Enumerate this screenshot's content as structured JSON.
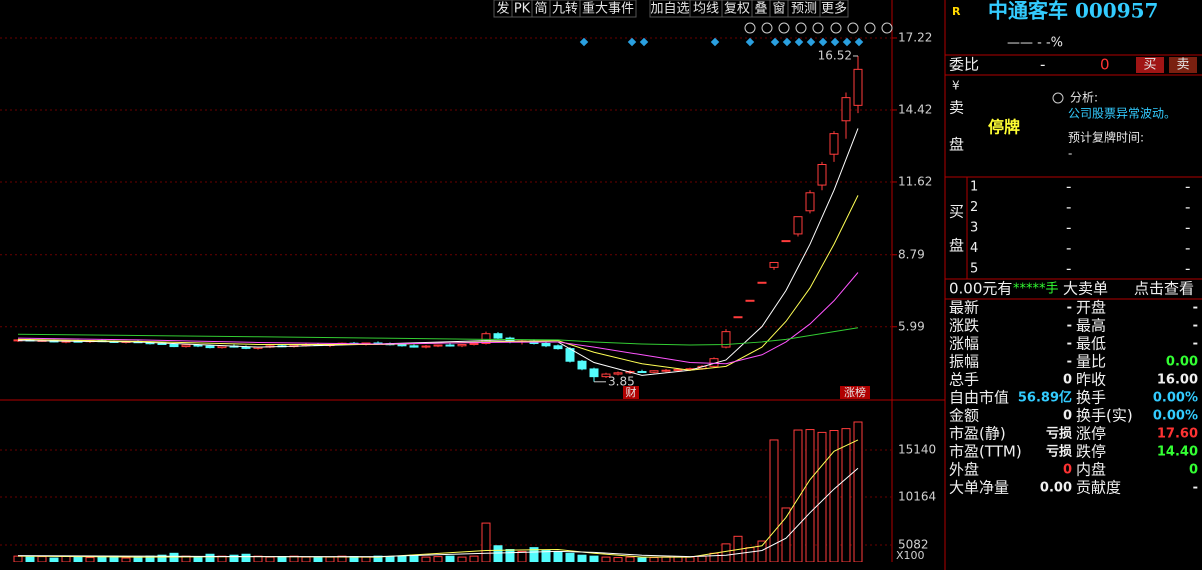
{
  "toolbar": [
    "发",
    "PK",
    "简",
    "九转",
    "重大事件",
    "加自选",
    "均线",
    "复权",
    "叠",
    "窗",
    "预测",
    "更多"
  ],
  "chart": {
    "ylim": [
      3.22,
      17.53
    ],
    "yticks": [
      17.22,
      14.42,
      11.62,
      8.79,
      5.99
    ],
    "candles": [
      [
        5.45,
        5.5,
        5.4,
        5.48
      ],
      [
        5.48,
        5.52,
        5.42,
        5.44
      ],
      [
        5.44,
        5.5,
        5.4,
        5.46
      ],
      [
        5.46,
        5.5,
        5.38,
        5.4
      ],
      [
        5.4,
        5.46,
        5.35,
        5.43
      ],
      [
        5.43,
        5.48,
        5.38,
        5.41
      ],
      [
        5.41,
        5.47,
        5.36,
        5.45
      ],
      [
        5.45,
        5.5,
        5.4,
        5.42
      ],
      [
        5.42,
        5.46,
        5.36,
        5.38
      ],
      [
        5.38,
        5.44,
        5.34,
        5.42
      ],
      [
        5.42,
        5.46,
        5.36,
        5.37
      ],
      [
        5.37,
        5.42,
        5.3,
        5.35
      ],
      [
        5.35,
        5.4,
        5.28,
        5.3
      ],
      [
        5.3,
        5.35,
        5.2,
        5.22
      ],
      [
        5.22,
        5.3,
        5.18,
        5.28
      ],
      [
        5.28,
        5.32,
        5.2,
        5.24
      ],
      [
        5.24,
        5.3,
        5.15,
        5.18
      ],
      [
        5.18,
        5.26,
        5.14,
        5.24
      ],
      [
        5.24,
        5.3,
        5.18,
        5.2
      ],
      [
        5.2,
        5.26,
        5.12,
        5.15
      ],
      [
        5.15,
        5.22,
        5.1,
        5.2
      ],
      [
        5.2,
        5.28,
        5.16,
        5.25
      ],
      [
        5.25,
        5.3,
        5.2,
        5.22
      ],
      [
        5.22,
        5.3,
        5.18,
        5.28
      ],
      [
        5.28,
        5.34,
        5.22,
        5.3
      ],
      [
        5.3,
        5.36,
        5.24,
        5.26
      ],
      [
        5.26,
        5.32,
        5.2,
        5.3
      ],
      [
        5.3,
        5.38,
        5.26,
        5.35
      ],
      [
        5.35,
        5.4,
        5.28,
        5.32
      ],
      [
        5.32,
        5.38,
        5.26,
        5.36
      ],
      [
        5.36,
        5.42,
        5.3,
        5.33
      ],
      [
        5.33,
        5.38,
        5.26,
        5.3
      ],
      [
        5.3,
        5.36,
        5.22,
        5.25
      ],
      [
        5.25,
        5.3,
        5.18,
        5.2
      ],
      [
        5.2,
        5.28,
        5.15,
        5.24
      ],
      [
        5.24,
        5.3,
        5.2,
        5.28
      ],
      [
        5.28,
        5.34,
        5.22,
        5.25
      ],
      [
        5.25,
        5.32,
        5.2,
        5.3
      ],
      [
        5.3,
        5.38,
        5.26,
        5.34
      ],
      [
        5.34,
        5.8,
        5.3,
        5.72
      ],
      [
        5.72,
        5.78,
        5.5,
        5.55
      ],
      [
        5.55,
        5.6,
        5.35,
        5.4
      ],
      [
        5.4,
        5.48,
        5.3,
        5.44
      ],
      [
        5.44,
        5.5,
        5.3,
        5.34
      ],
      [
        5.34,
        5.4,
        5.2,
        5.25
      ],
      [
        5.25,
        5.3,
        5.1,
        5.14
      ],
      [
        5.14,
        5.2,
        4.6,
        4.65
      ],
      [
        4.65,
        4.7,
        4.3,
        4.35
      ],
      [
        4.35,
        4.4,
        3.85,
        4.05
      ],
      [
        4.05,
        4.2,
        4.0,
        4.15
      ],
      [
        4.15,
        4.25,
        4.1,
        4.2
      ],
      [
        4.2,
        4.3,
        4.15,
        4.25
      ],
      [
        4.25,
        4.32,
        4.2,
        4.22
      ],
      [
        4.22,
        4.3,
        4.18,
        4.28
      ],
      [
        4.28,
        4.35,
        4.22,
        4.3
      ],
      [
        4.3,
        4.38,
        4.25,
        4.33
      ],
      [
        4.33,
        4.4,
        4.28,
        4.36
      ],
      [
        4.36,
        4.5,
        4.32,
        4.45
      ],
      [
        4.45,
        4.8,
        4.4,
        4.75
      ],
      [
        5.2,
        5.9,
        5.15,
        5.8
      ],
      [
        6.38,
        6.38,
        6.38,
        6.38
      ],
      [
        7.02,
        7.02,
        7.02,
        7.02
      ],
      [
        7.72,
        7.72,
        7.72,
        7.72
      ],
      [
        8.3,
        8.49,
        8.2,
        8.49
      ],
      [
        9.34,
        9.34,
        9.34,
        9.34
      ],
      [
        9.6,
        10.27,
        9.5,
        10.27
      ],
      [
        10.5,
        11.3,
        10.4,
        11.2
      ],
      [
        11.5,
        12.4,
        11.3,
        12.3
      ],
      [
        12.7,
        13.6,
        12.4,
        13.5
      ],
      [
        14.0,
        15.1,
        13.3,
        14.9
      ],
      [
        14.6,
        16.52,
        14.3,
        16.0
      ]
    ],
    "ma_x": [
      0,
      10,
      20,
      30,
      39,
      45,
      48,
      52,
      56,
      59,
      62,
      64,
      66,
      68,
      70
    ],
    "ma": [
      {
        "color": "#ffffff",
        "values": [
          5.45,
          5.4,
          5.2,
          5.32,
          5.45,
          5.4,
          4.6,
          4.1,
          4.3,
          4.7,
          6.0,
          7.4,
          9.2,
          11.3,
          13.7
        ]
      },
      {
        "color": "#ffff55",
        "values": [
          5.5,
          5.42,
          5.3,
          5.3,
          5.4,
          5.45,
          5.0,
          4.55,
          4.3,
          4.45,
          5.2,
          6.2,
          7.5,
          9.2,
          11.1
        ]
      },
      {
        "color": "#ff55ff",
        "values": [
          5.55,
          5.48,
          5.38,
          5.32,
          5.38,
          5.4,
          5.2,
          4.9,
          4.6,
          4.55,
          4.9,
          5.4,
          6.1,
          7.0,
          8.1
        ]
      },
      {
        "color": "#33cc33",
        "values": [
          5.7,
          5.65,
          5.6,
          5.55,
          5.5,
          5.48,
          5.4,
          5.32,
          5.28,
          5.3,
          5.4,
          5.5,
          5.65,
          5.8,
          5.95
        ]
      }
    ],
    "high": 16.52,
    "low": 3.85,
    "badge_cai": "财",
    "badge_zhangbang": "涨榜",
    "vol_ylim": [
      3280,
      19900
    ],
    "vol_ticks": [
      15140,
      10164,
      5082
    ],
    "vol_unit": "X100",
    "volumes": [
      3900,
      3800,
      3850,
      3700,
      3900,
      3800,
      3750,
      3850,
      3900,
      3700,
      3800,
      3900,
      4000,
      4200,
      3900,
      3800,
      4100,
      3900,
      4000,
      4100,
      3900,
      3800,
      3850,
      3900,
      3800,
      3750,
      3800,
      3900,
      3850,
      3800,
      3900,
      3850,
      3900,
      4000,
      3800,
      3850,
      3900,
      3800,
      3900,
      7400,
      5000,
      4600,
      4400,
      4800,
      4500,
      4300,
      4200,
      4000,
      3900,
      3800,
      3750,
      3800,
      3700,
      3750,
      3800,
      3850,
      3800,
      3900,
      4200,
      5200,
      6000,
      4800,
      5500,
      16200,
      9000,
      17250,
      17300,
      17000,
      17200,
      17400,
      18100
    ],
    "vol_ma": [
      {
        "color": "#ffff55",
        "values": [
          3900,
          3800,
          3850,
          3800,
          4500,
          4600,
          4200,
          3800,
          3800,
          4400,
          5000,
          8000,
          12000,
          15000,
          16200
        ]
      },
      {
        "color": "#ffffff",
        "values": [
          3950,
          3900,
          3850,
          3850,
          4200,
          4400,
          4300,
          4000,
          3850,
          4000,
          4500,
          5800,
          8500,
          11000,
          13200
        ]
      }
    ]
  },
  "quote": {
    "badge": "R",
    "title": "中通客车 000957",
    "change_line": "—— - -%",
    "weibi_label": "委比",
    "weibi_value": "-",
    "weibi_diff": "0",
    "buy_button": "买",
    "sell_button": "卖",
    "sell_side": [
      "¥",
      "卖",
      "盘"
    ],
    "halt": "停牌",
    "analysis_label": "分析:",
    "analysis_text": "公司股票异常波动。",
    "resume_label": "预计复牌时间:",
    "resume_value": "-",
    "buy_side": [
      "买",
      "盘"
    ],
    "levels": [
      [
        "1",
        "-",
        "-"
      ],
      [
        "2",
        "-",
        "-"
      ],
      [
        "3",
        "-",
        "-"
      ],
      [
        "4",
        "-",
        "-"
      ],
      [
        "5",
        "-",
        "-"
      ]
    ],
    "big_order": [
      "0.00元有",
      "*****手",
      "大卖单",
      "点击查看"
    ],
    "rows": [
      [
        "最新",
        "-",
        "开盘",
        "-"
      ],
      [
        "涨跌",
        "-",
        "最高",
        "-"
      ],
      [
        "涨幅",
        "-",
        "最低",
        "-"
      ],
      [
        "振幅",
        "-",
        "量比",
        "0.00"
      ],
      [
        "总手",
        "0",
        "昨收",
        "16.00"
      ],
      [
        "自由市值",
        "56.89亿",
        "换手",
        "0.00%"
      ],
      [
        "金额",
        "0",
        "换手(实)",
        "0.00%"
      ],
      [
        "市盈(静)",
        "亏损",
        "涨停",
        "17.60"
      ],
      [
        "市盈(TTM)",
        "亏损",
        "跌停",
        "14.40"
      ],
      [
        "外盘",
        "0",
        "内盘",
        "0"
      ],
      [
        "大单净量",
        "0.00",
        "贡献度",
        "-"
      ]
    ]
  }
}
